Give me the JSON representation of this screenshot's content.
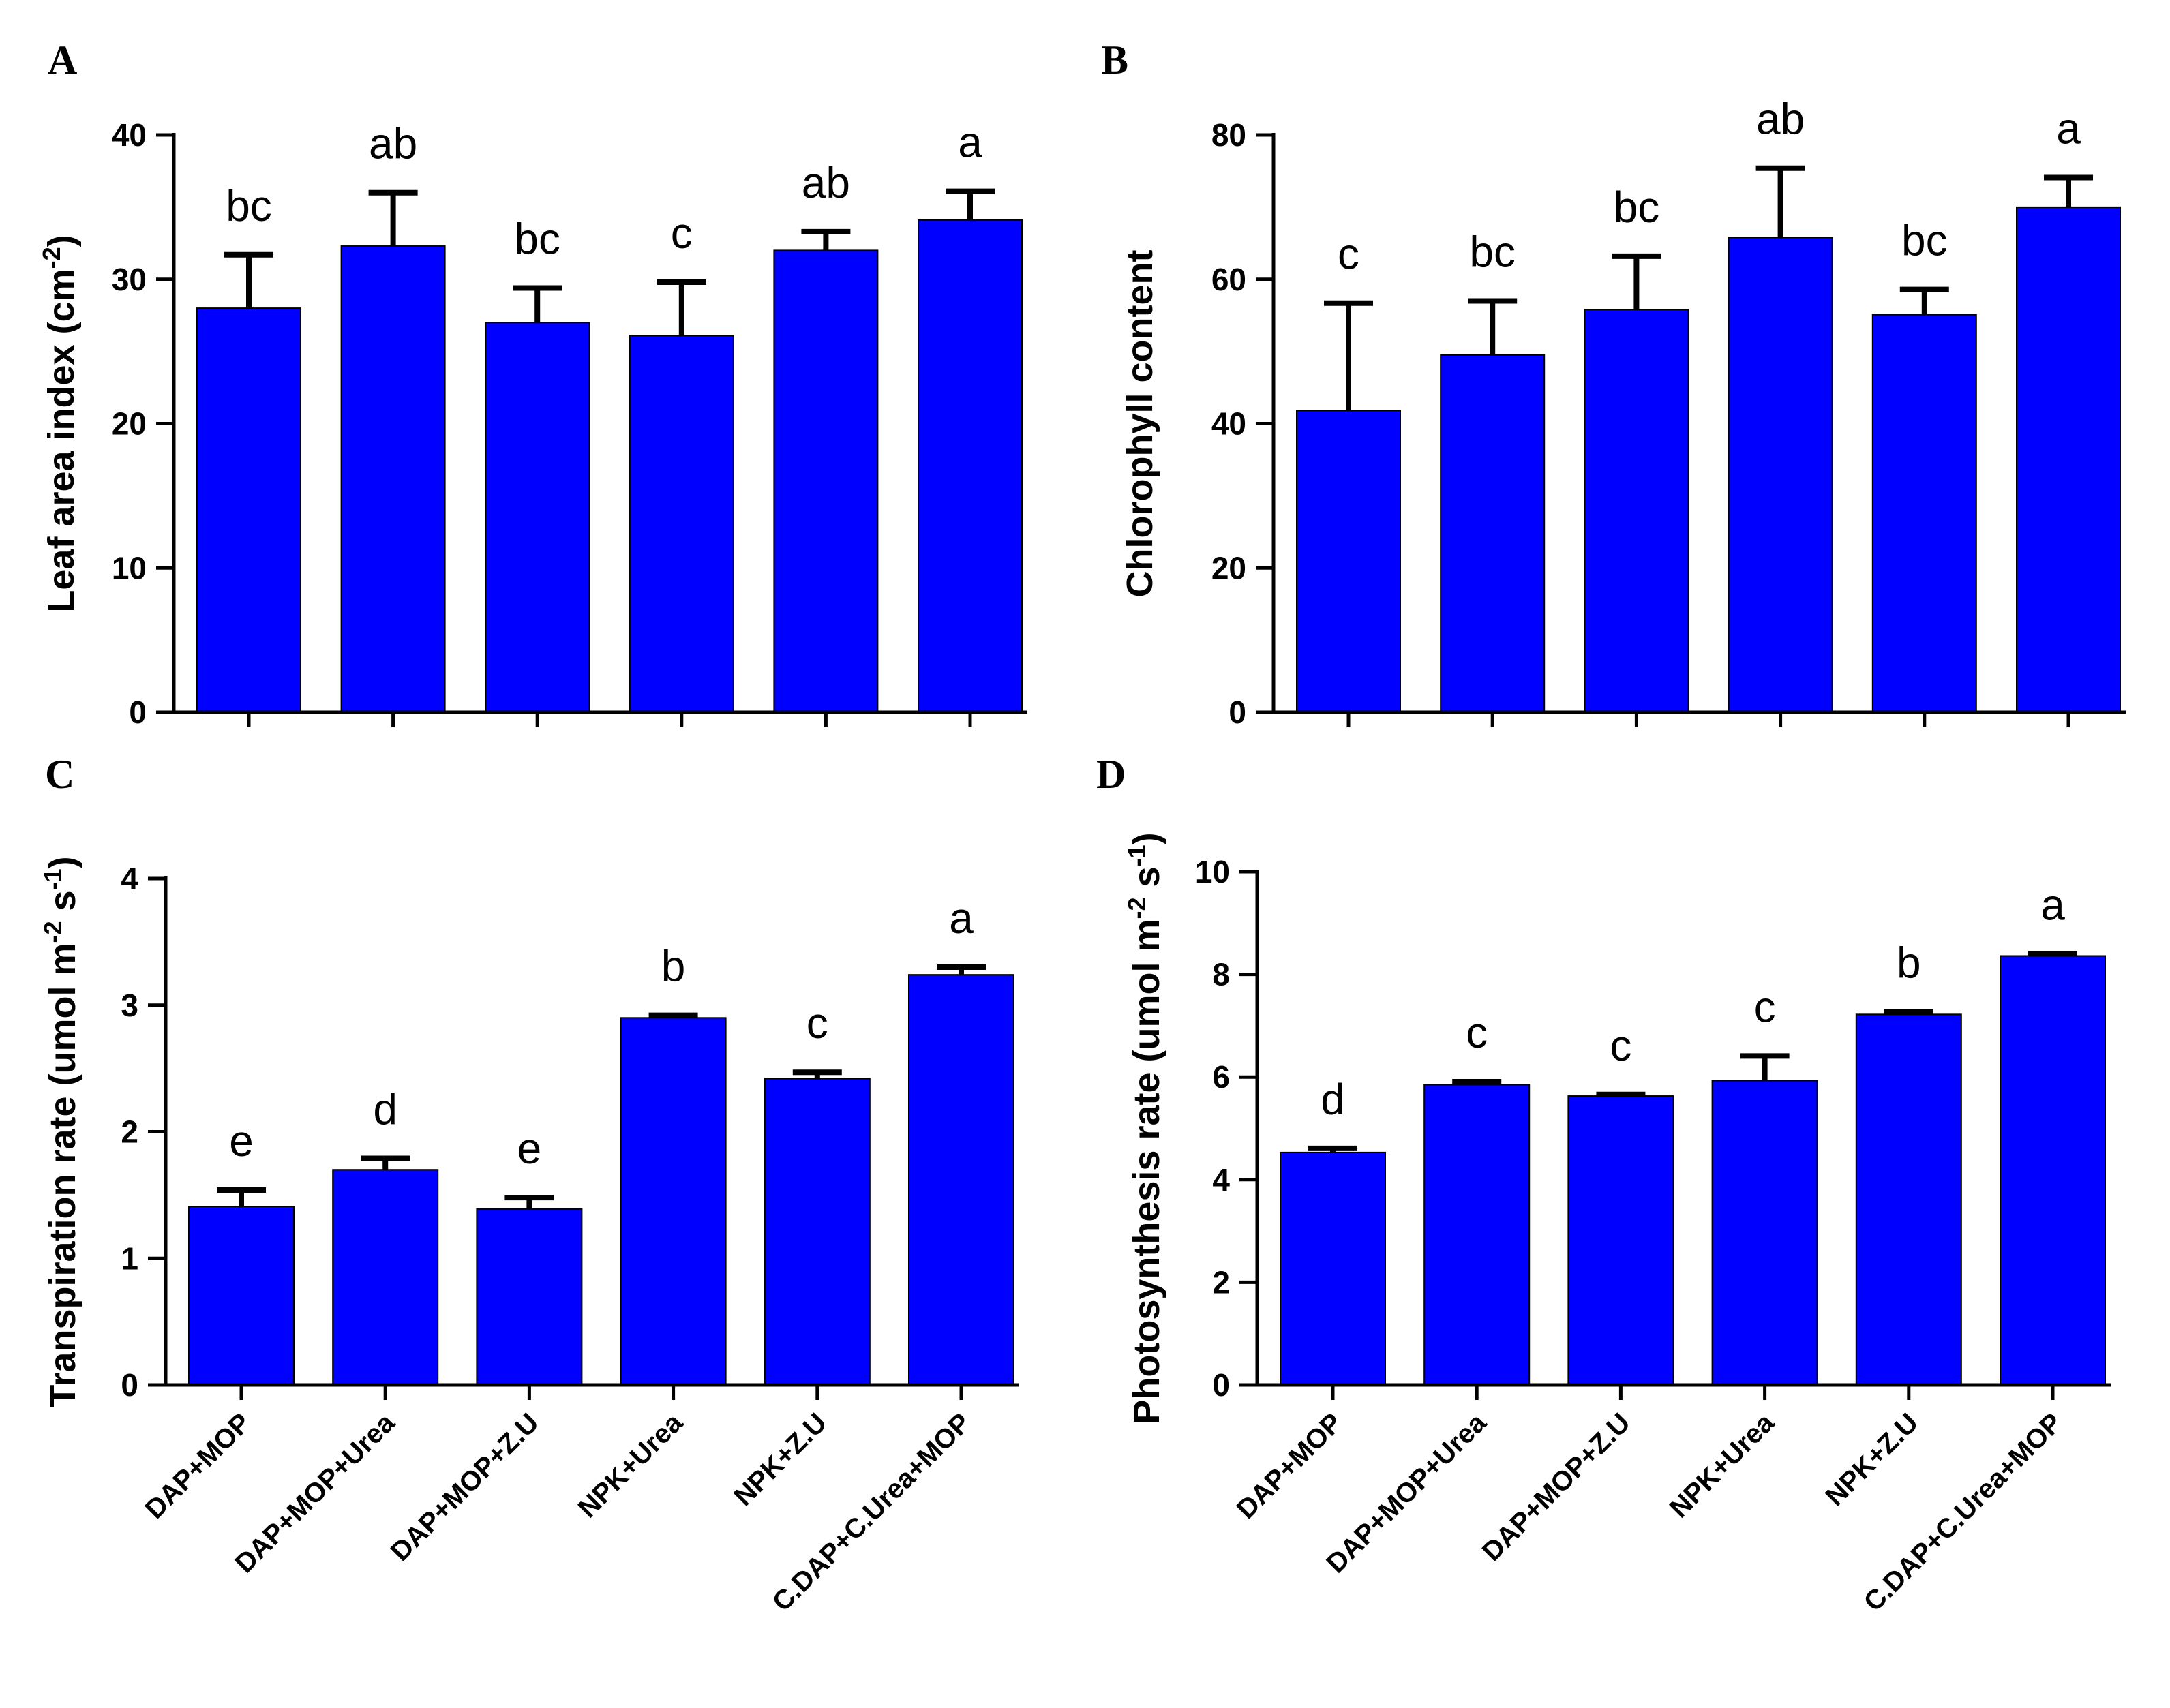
{
  "bar_color": "#0000ff",
  "chart_data": [
    {
      "panel": "A",
      "type": "bar",
      "categories": [
        "DAP+MOP",
        "DAP+MOP+Urea",
        "DAP+MOP+Z.U",
        "NPK+Urea",
        "NPK+Z.U",
        "C.DAP+C.Urea+MOP"
      ],
      "values": [
        28,
        32.3,
        27,
        26.1,
        32,
        34.1
      ],
      "errors": [
        3.7,
        3.7,
        2.4,
        3.7,
        1.3,
        2.0
      ],
      "sig_letters": [
        "bc",
        "ab",
        "bc",
        "c",
        "ab",
        "a"
      ],
      "ylabel_main": "Leaf area index (cm",
      "ylabel_sup": "-2",
      "ylabel_end": ")",
      "ylim": [
        0,
        40
      ],
      "yticks": [
        "0",
        "10",
        "20",
        "30",
        "40"
      ],
      "show_xlabels": false
    },
    {
      "panel": "B",
      "type": "bar",
      "categories": [
        "DAP+MOP",
        "DAP+MOP+Urea",
        "DAP+MOP+Z.U",
        "NPK+Urea",
        "NPK+Z.U",
        "C.DAP+C.Urea+MOP"
      ],
      "values": [
        41.8,
        49.5,
        55.8,
        65.8,
        55.1,
        70
      ],
      "errors": [
        14.9,
        7.5,
        7.4,
        9.6,
        3.5,
        4.1
      ],
      "sig_letters": [
        "c",
        "bc",
        "bc",
        "ab",
        "bc",
        "a"
      ],
      "ylabel_main": "Chlorophyll content",
      "ylabel_sup": "",
      "ylabel_end": "",
      "ylim": [
        0,
        80
      ],
      "yticks": [
        "0",
        "20",
        "40",
        "60",
        "80"
      ],
      "show_xlabels": false
    },
    {
      "panel": "C",
      "type": "bar",
      "categories": [
        "DAP+MOP",
        "DAP+MOP+Urea",
        "DAP+MOP+Z.U",
        "NPK+Urea",
        "NPK+Z.U",
        "C.DAP+C.Urea+MOP"
      ],
      "values": [
        1.41,
        1.7,
        1.39,
        2.9,
        2.42,
        3.24
      ],
      "errors": [
        0.13,
        0.09,
        0.09,
        0.02,
        0.05,
        0.06
      ],
      "sig_letters": [
        "e",
        "d",
        "e",
        "b",
        "c",
        "a"
      ],
      "ylabel_main": "Transpiration rate (umol m",
      "ylabel_sup": "-2",
      "ylabel_mid": " s",
      "ylabel_sup2": "-1",
      "ylabel_end": ")",
      "ylim": [
        0,
        4
      ],
      "yticks": [
        "0",
        "1",
        "2",
        "3",
        "4"
      ],
      "show_xlabels": true
    },
    {
      "panel": "D",
      "type": "bar",
      "categories": [
        "DAP+MOP",
        "DAP+MOP+Urea",
        "DAP+MOP+Z.U",
        "NPK+Urea",
        "NPK+Z.U",
        "C.DAP+C.Urea+MOP"
      ],
      "values": [
        4.53,
        5.85,
        5.63,
        5.93,
        7.22,
        8.36
      ],
      "errors": [
        0.08,
        0.06,
        0.03,
        0.48,
        0.05,
        0.04
      ],
      "sig_letters": [
        "d",
        "c",
        "c",
        "c",
        "b",
        "a"
      ],
      "ylabel_main": "Photosynthesis rate (umol m",
      "ylabel_sup": "-2",
      "ylabel_mid": " s",
      "ylabel_sup2": "-1",
      "ylabel_end": ")",
      "ylim": [
        0,
        10
      ],
      "yticks": [
        "0",
        "2",
        "4",
        "6",
        "8",
        "10"
      ],
      "show_xlabels": true
    }
  ]
}
